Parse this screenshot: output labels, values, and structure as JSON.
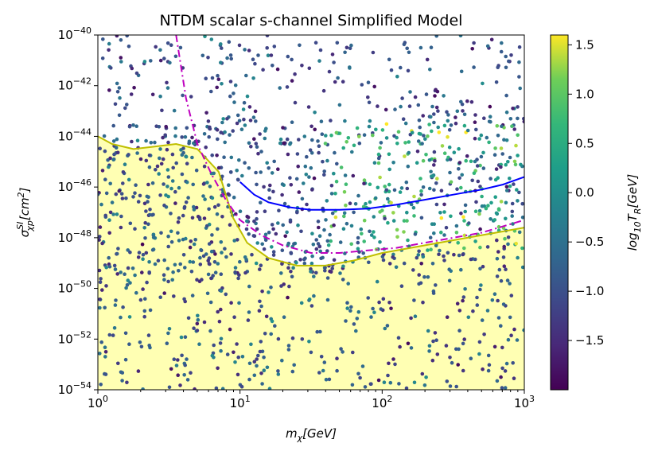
{
  "chart_data": {
    "type": "scatter",
    "title": "NTDM scalar s-channel Simplified Model",
    "xlabel": "m_χ[GeV]",
    "ylabel": "σ^{SI}_{χp}[cm^2]",
    "x_scale": "log",
    "y_scale": "log",
    "xlim_log10": [
      0,
      3
    ],
    "ylim_log10": [
      -54,
      -40
    ],
    "x_ticks": [
      {
        "base": "10",
        "exp": "0"
      },
      {
        "base": "10",
        "exp": "1"
      },
      {
        "base": "10",
        "exp": "2"
      },
      {
        "base": "10",
        "exp": "3"
      }
    ],
    "y_ticks": [
      {
        "base": "10",
        "exp": "−54"
      },
      {
        "base": "10",
        "exp": "−52"
      },
      {
        "base": "10",
        "exp": "−50"
      },
      {
        "base": "10",
        "exp": "−48"
      },
      {
        "base": "10",
        "exp": "−46"
      },
      {
        "base": "10",
        "exp": "−44"
      },
      {
        "base": "10",
        "exp": "−42"
      },
      {
        "base": "10",
        "exp": "−40"
      }
    ],
    "colorbar": {
      "label": "log_{10}T_R[GeV]",
      "range": [
        -2.0,
        1.6
      ],
      "colormap": "viridis",
      "ticks": [
        "1.5",
        "1.0",
        "0.5",
        "0.0",
        "−0.5",
        "−1.0",
        "−1.5"
      ],
      "tick_values": [
        1.5,
        1.0,
        0.5,
        0.0,
        -0.5,
        -1.0,
        -1.5
      ]
    },
    "shaded_region": {
      "name": "neutrino floor (shaded below)",
      "color": "#ffffb3",
      "boundary_log10": [
        [
          0,
          -44.0
        ],
        [
          0.1,
          -44.3
        ],
        [
          0.25,
          -44.5
        ],
        [
          0.4,
          -44.4
        ],
        [
          0.55,
          -44.3
        ],
        [
          0.7,
          -44.5
        ],
        [
          0.85,
          -45.4
        ],
        [
          0.95,
          -47.2
        ],
        [
          1.05,
          -48.2
        ],
        [
          1.2,
          -48.8
        ],
        [
          1.4,
          -49.1
        ],
        [
          1.6,
          -49.1
        ],
        [
          1.8,
          -48.9
        ],
        [
          2.0,
          -48.6
        ],
        [
          2.2,
          -48.4
        ],
        [
          2.5,
          -48.1
        ],
        [
          2.8,
          -47.8
        ],
        [
          3.0,
          -47.6
        ]
      ]
    },
    "series": [
      {
        "name": "yellow-curve",
        "style": "solid",
        "color": "#bfbf00",
        "points_log10": [
          [
            0,
            -44.0
          ],
          [
            0.1,
            -44.3
          ],
          [
            0.25,
            -44.5
          ],
          [
            0.4,
            -44.4
          ],
          [
            0.55,
            -44.3
          ],
          [
            0.7,
            -44.5
          ],
          [
            0.85,
            -45.4
          ],
          [
            0.95,
            -47.2
          ],
          [
            1.05,
            -48.2
          ],
          [
            1.2,
            -48.8
          ],
          [
            1.4,
            -49.1
          ],
          [
            1.6,
            -49.1
          ],
          [
            1.8,
            -48.9
          ],
          [
            2.0,
            -48.6
          ],
          [
            2.2,
            -48.4
          ],
          [
            2.5,
            -48.1
          ],
          [
            2.8,
            -47.8
          ],
          [
            3.0,
            -47.6
          ]
        ]
      },
      {
        "name": "magenta-dashdot-curve",
        "style": "dashdot",
        "color": "#bf00bf",
        "points_log10": [
          [
            0.55,
            -40.0
          ],
          [
            0.62,
            -42.5
          ],
          [
            0.7,
            -44.3
          ],
          [
            0.8,
            -45.5
          ],
          [
            0.9,
            -46.5
          ],
          [
            1.0,
            -47.3
          ],
          [
            1.15,
            -47.9
          ],
          [
            1.3,
            -48.3
          ],
          [
            1.5,
            -48.6
          ],
          [
            1.7,
            -48.6
          ],
          [
            1.9,
            -48.5
          ],
          [
            2.1,
            -48.4
          ],
          [
            2.3,
            -48.2
          ],
          [
            2.5,
            -48.0
          ],
          [
            2.7,
            -47.8
          ],
          [
            3.0,
            -47.3
          ]
        ]
      },
      {
        "name": "blue-curve",
        "style": "solid",
        "color": "#0000ff",
        "points_log10": [
          [
            1.0,
            -45.8
          ],
          [
            1.1,
            -46.3
          ],
          [
            1.2,
            -46.6
          ],
          [
            1.35,
            -46.8
          ],
          [
            1.5,
            -46.9
          ],
          [
            1.7,
            -46.9
          ],
          [
            1.9,
            -46.85
          ],
          [
            2.1,
            -46.7
          ],
          [
            2.3,
            -46.5
          ],
          [
            2.5,
            -46.3
          ],
          [
            2.7,
            -46.1
          ],
          [
            2.85,
            -45.9
          ],
          [
            3.0,
            -45.6
          ]
        ]
      },
      {
        "name": "scatter-points",
        "style": "markers",
        "x_range_log10": [
          0,
          3
        ],
        "y_range_log10": [
          -54,
          -40
        ],
        "color_range": [
          -2.0,
          1.6
        ],
        "note": "random scan of model points colored by log10 T_R"
      }
    ],
    "grid": false,
    "legend": "none"
  }
}
